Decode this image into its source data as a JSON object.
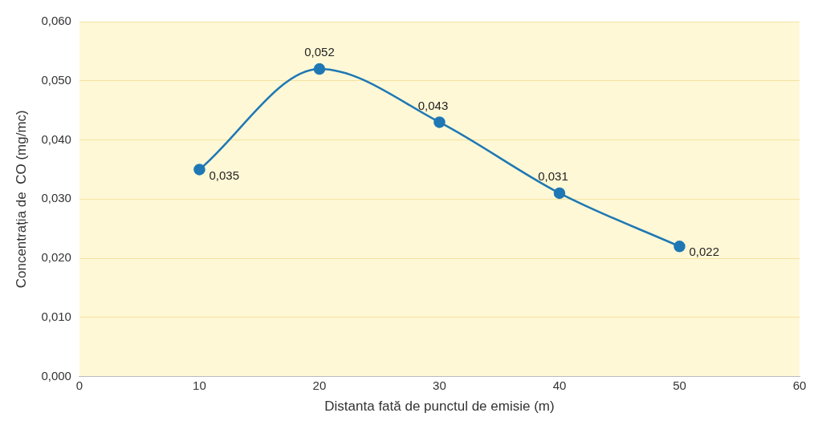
{
  "chart_data": {
    "type": "line",
    "xlabel": "Distanta fată de punctul de emisie (m)",
    "ylabel": "Concentrația de  CO (mg/mc)",
    "x": [
      10,
      20,
      30,
      40,
      50
    ],
    "series": [
      {
        "color": "#1f78b4",
        "values": [
          0.035,
          0.052,
          0.043,
          0.031,
          0.022
        ],
        "value_labels": [
          "0,035",
          "0,052",
          "0,043",
          "0,031",
          "0,022"
        ]
      }
    ],
    "xlim": [
      0,
      60
    ],
    "xticks": [
      0,
      10,
      20,
      30,
      40,
      50,
      60
    ],
    "ylim": [
      0,
      0.06
    ],
    "yticks": [
      {
        "value": 0,
        "label": "0,000"
      },
      {
        "value": 0.01,
        "label": "0,010"
      },
      {
        "value": 0.02,
        "label": "0,020"
      },
      {
        "value": 0.03,
        "label": "0,030"
      },
      {
        "value": 0.04,
        "label": "0,040"
      },
      {
        "value": 0.05,
        "label": "0,050"
      },
      {
        "value": 0.06,
        "label": "0,060"
      }
    ],
    "grid": "y",
    "marker": "circle",
    "line_style": "solid",
    "legend": false
  }
}
